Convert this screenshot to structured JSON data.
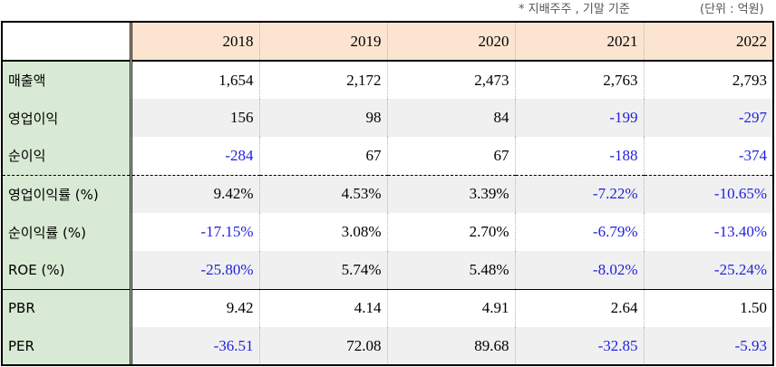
{
  "notes": {
    "basis": "* 지배주주 , 기말 기준",
    "unit": "(단위 : 억원)"
  },
  "colors": {
    "header_bg": "#fbe5d1",
    "label_bg": "#d8ead3",
    "shade_bg": "#f0f0f0",
    "negative_text": "#1f1fe0"
  },
  "table": {
    "years": [
      "2018",
      "2019",
      "2020",
      "2021",
      "2022"
    ],
    "rows": [
      {
        "label": "매출액",
        "values": [
          "1,654",
          "2,172",
          "2,473",
          "2,763",
          "2,793"
        ]
      },
      {
        "label": "영업이익",
        "values": [
          "156",
          "98",
          "84",
          "-199",
          "-297"
        ]
      },
      {
        "label": "순이익",
        "values": [
          "-284",
          "67",
          "67",
          "-188",
          "-374"
        ]
      },
      {
        "label": "영업이익률 (%)",
        "values": [
          "9.42%",
          "4.53%",
          "3.39%",
          "-7.22%",
          "-10.65%"
        ]
      },
      {
        "label": "순이익률 (%)",
        "values": [
          "-17.15%",
          "3.08%",
          "2.70%",
          "-6.79%",
          "-13.40%"
        ]
      },
      {
        "label": "ROE (%)",
        "values": [
          "-25.80%",
          "5.74%",
          "5.48%",
          "-8.02%",
          "-25.24%"
        ]
      },
      {
        "label": "PBR",
        "values": [
          "9.42",
          "4.14",
          "4.91",
          "2.64",
          "1.50"
        ]
      },
      {
        "label": "PER",
        "values": [
          "-36.51",
          "72.08",
          "89.68",
          "-32.85",
          "-5.93"
        ]
      }
    ]
  }
}
